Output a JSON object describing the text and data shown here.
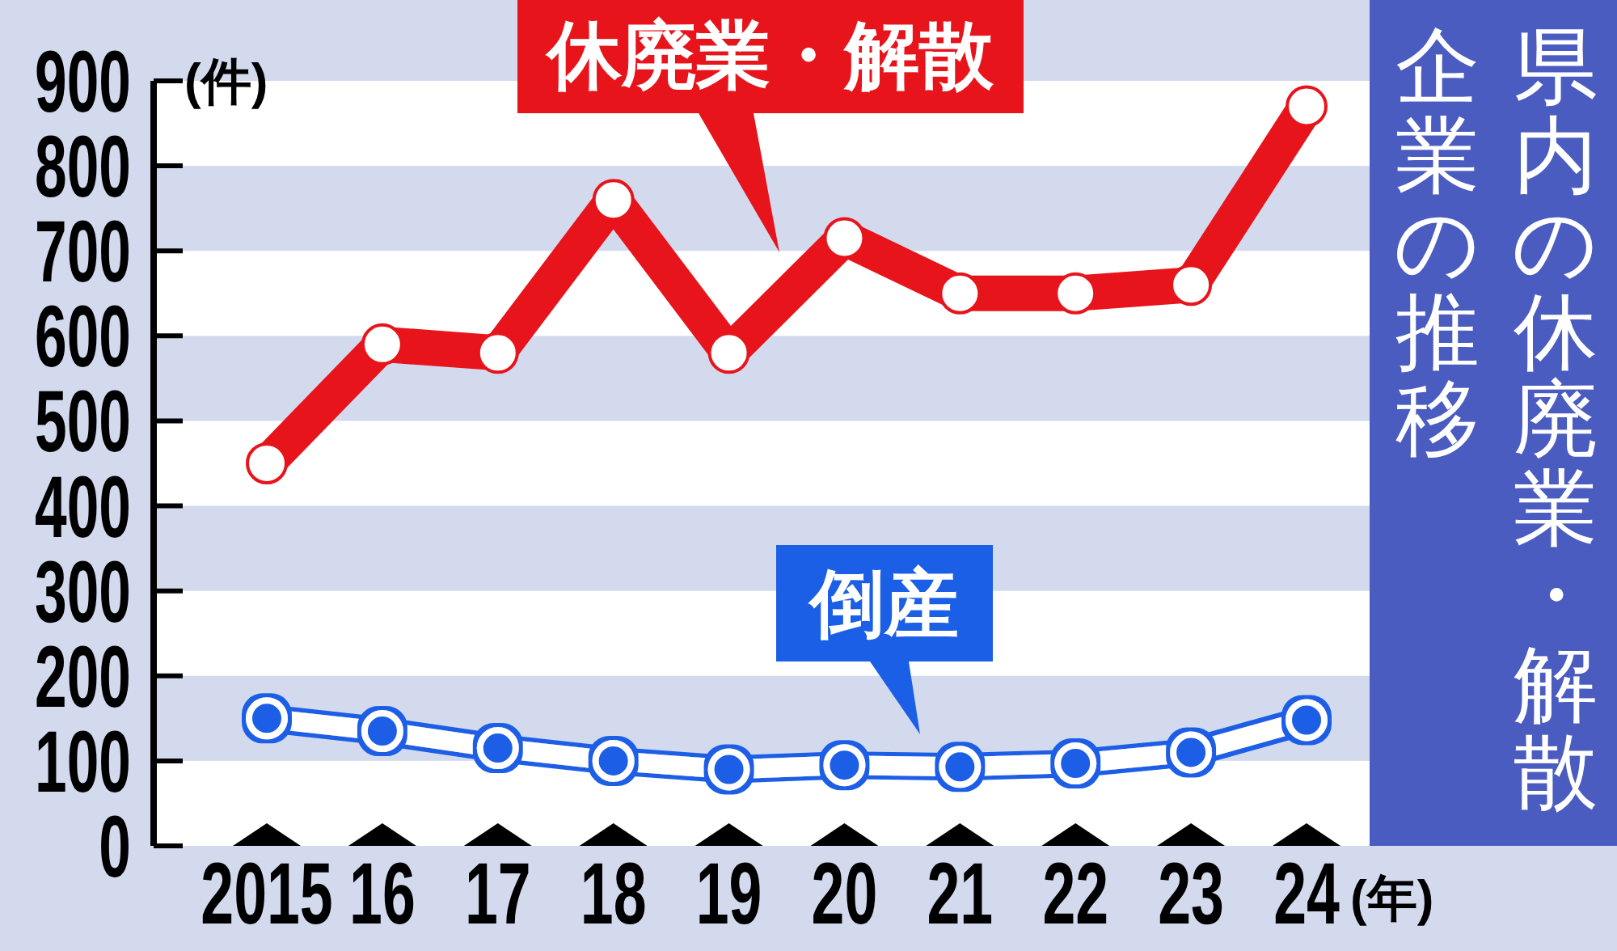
{
  "chart_data": {
    "type": "line",
    "title": "県内の休廃業・解散企業の推移",
    "xlabel": "(年)",
    "ylabel": "(件)",
    "categories": [
      "2015",
      "16",
      "17",
      "18",
      "19",
      "20",
      "21",
      "22",
      "23",
      "24"
    ],
    "series": [
      {
        "name": "休廃業・解散",
        "color": "#e8141b",
        "values": [
          450,
          590,
          580,
          760,
          580,
          715,
          650,
          650,
          660,
          870
        ]
      },
      {
        "name": "倒産",
        "color": "#1a5fe6",
        "values": [
          150,
          135,
          115,
          100,
          90,
          95,
          93,
          97,
          110,
          148
        ]
      }
    ],
    "ylim": [
      0,
      900
    ],
    "yticks": [
      0,
      100,
      200,
      300,
      400,
      500,
      600,
      700,
      800,
      900
    ],
    "marker": "circle",
    "bands": [
      {
        "axis": "y",
        "from": 100,
        "to": 200,
        "color": "#d3daee"
      },
      {
        "axis": "y",
        "from": 300,
        "to": 400,
        "color": "#d3daee"
      },
      {
        "axis": "y",
        "from": 500,
        "to": 600,
        "color": "#d3daee"
      },
      {
        "axis": "y",
        "from": 700,
        "to": 800,
        "color": "#d3daee"
      }
    ]
  }
}
